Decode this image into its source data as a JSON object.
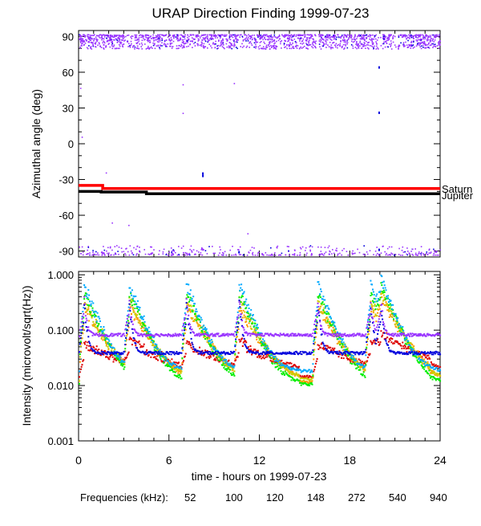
{
  "title": "URAP Direction Finding  1999-07-23",
  "chart_data": [
    {
      "type": "scatter",
      "title": "URAP Direction Finding  1999-07-23",
      "ylabel": "Azimuthal angle (deg)",
      "ylim": [
        -95,
        95
      ],
      "yticks": [
        "90",
        "60",
        "30",
        "0",
        "-30",
        "-60",
        "-90"
      ],
      "xlim": [
        0,
        24
      ],
      "reference_lines": [
        {
          "name": "Saturn",
          "color": "#ff0000",
          "points": [
            [
              0,
              -35
            ],
            [
              1.6,
              -35
            ],
            [
              1.6,
              -37.5
            ],
            [
              24,
              -37.5
            ]
          ]
        },
        {
          "name": "Jupiter",
          "color": "#000000",
          "points": [
            [
              0,
              -40
            ],
            [
              1.5,
              -40
            ],
            [
              1.5,
              -40.5
            ],
            [
              4.5,
              -40.5
            ],
            [
              4.5,
              -42
            ],
            [
              24,
              -42
            ]
          ]
        }
      ],
      "series": [
        {
          "name": "940 kHz scatter near +90",
          "color": "#9933ff",
          "y_range": [
            80,
            92
          ]
        },
        {
          "name": "940 kHz scatter near -90",
          "color": "#9933ff",
          "y_range": [
            -93,
            -85
          ]
        },
        {
          "name": "540 kHz sparse points",
          "color": "#0000dd",
          "points": [
            [
              8.2,
              -24
            ],
            [
              8.2,
              -26
            ],
            [
              19.9,
              65
            ],
            [
              19.9,
              27
            ],
            [
              19.9,
              -88
            ],
            [
              10.6,
              -90
            ]
          ]
        }
      ]
    },
    {
      "type": "line",
      "ylabel": "Intensity (microvolt/sqrt(Hz))",
      "yscale": "log",
      "ylim": [
        0.001,
        1.0
      ],
      "yticks": [
        "1.000",
        "0.100",
        "0.010",
        "0.001"
      ],
      "xlabel": "time - hours on 1999-07-23",
      "xlim": [
        0,
        24
      ],
      "xticks": [
        "0",
        "6",
        "12",
        "18",
        "24"
      ],
      "burst_times_hours": [
        0.3,
        3.3,
        7.1,
        10.6,
        15.8,
        19.3,
        20.0
      ],
      "series": [
        {
          "name": "52",
          "color": "#dd0000",
          "baseline": 0.015
        },
        {
          "name": "100",
          "color": "#ff9900",
          "baseline": 0.012
        },
        {
          "name": "120",
          "color": "#cccc00",
          "baseline": 0.0135
        },
        {
          "name": "148",
          "color": "#00ee00",
          "baseline": 0.011
        },
        {
          "name": "272",
          "color": "#00aaff",
          "baseline": 0.019
        },
        {
          "name": "540",
          "color": "#0000dd",
          "baseline": 0.04
        },
        {
          "name": "940",
          "color": "#9933ff",
          "baseline": 0.085
        }
      ]
    }
  ],
  "right_labels": {
    "saturn": "Saturn",
    "jupiter": "Jupiter"
  },
  "legend": {
    "label": "Frequencies (kHz):",
    "items": [
      {
        "text": "52",
        "color": "#dd0000"
      },
      {
        "text": "100",
        "color": "#ff9900"
      },
      {
        "text": "120",
        "color": "#cccc00"
      },
      {
        "text": "148",
        "color": "#00ee00"
      },
      {
        "text": "272",
        "color": "#00aaff"
      },
      {
        "text": "540",
        "color": "#0000dd"
      },
      {
        "text": "940",
        "color": "#9933ff"
      }
    ]
  }
}
